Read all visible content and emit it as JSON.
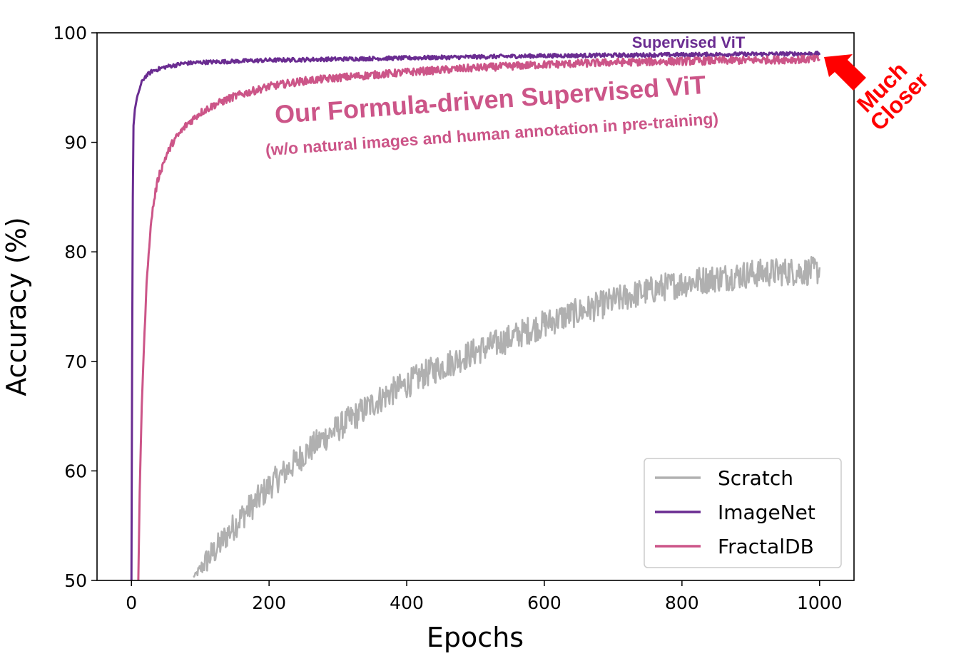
{
  "chart_data": {
    "type": "line",
    "xlabel": "Epochs",
    "ylabel": "Accuracy (%)",
    "xlim": [
      -50,
      1050
    ],
    "ylim": [
      50,
      100
    ],
    "xticks": [
      0,
      200,
      400,
      600,
      800,
      1000
    ],
    "yticks": [
      50,
      60,
      70,
      80,
      90,
      100
    ],
    "grid": false,
    "legend_position": "lower-right",
    "series": [
      {
        "name": "Scratch",
        "color": "#b0b0b0",
        "x": [
          90,
          100,
          110,
          120,
          130,
          140,
          150,
          160,
          170,
          180,
          200,
          225,
          250,
          275,
          300,
          325,
          350,
          375,
          400,
          425,
          450,
          475,
          500,
          525,
          550,
          575,
          600,
          625,
          650,
          675,
          700,
          725,
          750,
          775,
          800,
          825,
          850,
          875,
          900,
          925,
          950,
          975,
          1000
        ],
        "y": [
          50.3,
          51.0,
          51.9,
          52.6,
          53.4,
          54.3,
          55.0,
          55.8,
          56.5,
          57.1,
          58.6,
          60.0,
          61.5,
          62.8,
          63.9,
          65.0,
          66.1,
          67.1,
          67.9,
          68.8,
          69.5,
          70.2,
          70.9,
          71.5,
          72.1,
          72.8,
          73.4,
          74.0,
          74.5,
          75.0,
          75.5,
          76.0,
          76.4,
          76.8,
          77.1,
          77.4,
          77.6,
          77.8,
          78.0,
          78.1,
          78.2,
          78.2,
          78.3
        ]
      },
      {
        "name": "ImageNet",
        "color": "#6a2c91",
        "x": [
          0,
          1,
          2,
          3,
          5,
          8,
          10,
          15,
          20,
          30,
          40,
          50,
          60,
          75,
          100,
          150,
          200,
          300,
          400,
          500,
          600,
          700,
          800,
          900,
          1000
        ],
        "y": [
          50.0,
          70.0,
          85.0,
          91.5,
          93.0,
          94.0,
          94.5,
          95.5,
          96.0,
          96.5,
          96.7,
          96.9,
          97.0,
          97.2,
          97.3,
          97.4,
          97.5,
          97.6,
          97.7,
          97.8,
          97.9,
          97.95,
          98.0,
          98.05,
          98.1
        ]
      },
      {
        "name": "FractalDB",
        "color": "#cc5588",
        "x": [
          10,
          12,
          15,
          18,
          20,
          22,
          25,
          30,
          35,
          40,
          50,
          60,
          70,
          80,
          100,
          120,
          150,
          200,
          250,
          300,
          400,
          500,
          600,
          700,
          800,
          900,
          1000
        ],
        "y": [
          50.0,
          58.0,
          66.0,
          71.0,
          74.0,
          77.0,
          80.0,
          83.5,
          85.5,
          87.0,
          88.7,
          90.0,
          90.8,
          91.6,
          92.7,
          93.4,
          94.2,
          95.1,
          95.6,
          95.9,
          96.4,
          96.8,
          97.1,
          97.3,
          97.4,
          97.5,
          97.6
        ]
      }
    ],
    "annotations": {
      "supervised_vit": "Supervised ViT",
      "formula_title": "Our Formula-driven Supervised ViT",
      "formula_subtitle": "(w/o natural images and human annotation in pre-training)",
      "much": "Much",
      "closer": "Closer"
    }
  }
}
